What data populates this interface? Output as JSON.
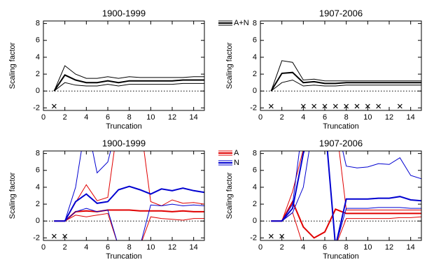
{
  "chart_data": [
    {
      "type": "line",
      "title": "1900-1999",
      "xlabel": "Truncation",
      "ylabel": "Scaling factor",
      "x": [
        1,
        2,
        3,
        4,
        5,
        6,
        7,
        8,
        9,
        10,
        11,
        12,
        13,
        14,
        15
      ],
      "xlim": [
        0,
        15
      ],
      "xticks": [
        0,
        2,
        4,
        6,
        8,
        10,
        12,
        14
      ],
      "ylim": [
        -2.3,
        8.3
      ],
      "yticks": [
        -2,
        0,
        2,
        4,
        6,
        8
      ],
      "reference_line": 0,
      "crosses": [
        1
      ],
      "series": [
        {
          "name": "A+N",
          "color": "#000000",
          "values": [
            0,
            1.9,
            1.3,
            1.0,
            1.0,
            1.2,
            1.0,
            1.2,
            1.2,
            1.2,
            1.2,
            1.2,
            1.3,
            1.3,
            1.3
          ],
          "upper": [
            0,
            3.0,
            2.0,
            1.5,
            1.5,
            1.7,
            1.5,
            1.7,
            1.6,
            1.6,
            1.6,
            1.6,
            1.6,
            1.7,
            1.7
          ],
          "lower": [
            0,
            1.0,
            0.7,
            0.6,
            0.6,
            0.8,
            0.6,
            0.8,
            0.8,
            0.8,
            0.8,
            0.8,
            0.9,
            0.9,
            0.9
          ]
        }
      ]
    },
    {
      "type": "line",
      "title": "1907-2006",
      "xlabel": "Truncation",
      "ylabel": "Scaling factor",
      "x": [
        1,
        2,
        3,
        4,
        5,
        6,
        7,
        8,
        9,
        10,
        11,
        12,
        13,
        14,
        15
      ],
      "xlim": [
        0,
        15
      ],
      "xticks": [
        0,
        2,
        4,
        6,
        8,
        10,
        12,
        14
      ],
      "ylim": [
        -2.3,
        8.3
      ],
      "yticks": [
        -2,
        0,
        2,
        4,
        6,
        8
      ],
      "reference_line": 0,
      "crosses": [
        1,
        4,
        5,
        6,
        7,
        8,
        9,
        10,
        11,
        13
      ],
      "series": [
        {
          "color": "#000000",
          "values": [
            0,
            2.1,
            2.2,
            1.0,
            1.1,
            0.9,
            0.9,
            1.0,
            1.0,
            1.0,
            1.0,
            1.0,
            1.0,
            1.0,
            1.0
          ],
          "upper": [
            0,
            3.6,
            3.4,
            1.3,
            1.4,
            1.2,
            1.2,
            1.2,
            1.2,
            1.2,
            1.2,
            1.2,
            1.2,
            1.2,
            1.2
          ],
          "lower": [
            0,
            1.0,
            1.3,
            0.6,
            0.7,
            0.6,
            0.6,
            0.7,
            0.7,
            0.7,
            0.7,
            0.7,
            0.7,
            0.7,
            0.7
          ]
        }
      ]
    },
    {
      "type": "line",
      "title": "1900-1999",
      "xlabel": "Truncation",
      "ylabel": "Scaling factor",
      "x": [
        1,
        2,
        3,
        4,
        5,
        6,
        7,
        8,
        9,
        10,
        11,
        12,
        13,
        14,
        15
      ],
      "xlim": [
        0,
        15
      ],
      "xticks": [
        0,
        2,
        4,
        6,
        8,
        10,
        12,
        14
      ],
      "ylim": [
        -2.3,
        8.3
      ],
      "yticks": [
        -2,
        0,
        2,
        4,
        6,
        8
      ],
      "reference_line": 0,
      "crosses": [
        1,
        2
      ],
      "series": [
        {
          "name": "A",
          "color": "#e00000",
          "values": [
            0,
            0,
            1.1,
            1.2,
            1.1,
            1.3,
            1.3,
            1.3,
            1.2,
            1.2,
            1.2,
            1.1,
            1.2,
            1.1,
            1.1
          ],
          "upper": [
            0,
            0,
            2.2,
            4.3,
            2.4,
            2.8,
            12,
            null,
            12,
            2.3,
            1.8,
            2.5,
            2.1,
            2.2,
            2.0
          ],
          "lower": [
            0,
            0,
            0.7,
            0.5,
            0.7,
            0.9,
            -3,
            null,
            -3,
            0.5,
            0.3,
            0.2,
            0.1,
            0.3,
            0.3
          ]
        },
        {
          "name": "N",
          "color": "#0000d0",
          "values": [
            0,
            0,
            2.3,
            3.2,
            2.1,
            2.3,
            3.7,
            4.1,
            3.7,
            3.2,
            3.8,
            3.6,
            3.9,
            3.6,
            3.4
          ],
          "upper": [
            0,
            0,
            4,
            12,
            5.7,
            7,
            12,
            null,
            12,
            12,
            12,
            12,
            12,
            12,
            12
          ],
          "lower": [
            0,
            0,
            1.1,
            1.5,
            1.1,
            1.3,
            -3,
            null,
            -3,
            1.9,
            1.8,
            2.0,
            1.8,
            1.9,
            1.8
          ]
        }
      ]
    },
    {
      "type": "line",
      "title": "1907-2006",
      "xlabel": "Truncation",
      "ylabel": "Scaling factor",
      "x": [
        1,
        2,
        3,
        4,
        5,
        6,
        7,
        8,
        9,
        10,
        11,
        12,
        13,
        14,
        15
      ],
      "xlim": [
        0,
        15
      ],
      "xticks": [
        0,
        2,
        4,
        6,
        8,
        10,
        12,
        14
      ],
      "ylim": [
        -2.3,
        8.3
      ],
      "yticks": [
        -2,
        0,
        2,
        4,
        6,
        8
      ],
      "reference_line": 0,
      "crosses": [
        1,
        2
      ],
      "series": [
        {
          "color": "#e00000",
          "values": [
            0,
            0,
            2.3,
            -0.7,
            -2.0,
            -1.3,
            1.4,
            0.9,
            0.9,
            0.9,
            0.9,
            0.9,
            0.9,
            0.9,
            0.9
          ],
          "upper": [
            0,
            0,
            3.5,
            8.5,
            12,
            12,
            12,
            1.3,
            1.3,
            1.3,
            1.3,
            1.3,
            1.3,
            1.3,
            1.3
          ],
          "lower": [
            0,
            0,
            1.0,
            -3,
            -3,
            -3,
            -3,
            0.3,
            0.3,
            0.3,
            0.3,
            0.3,
            0.4,
            0.4,
            0.5
          ]
        },
        {
          "color": "#0000d0",
          "values": [
            0,
            0,
            1.5,
            8,
            12,
            12,
            -3,
            2.6,
            2.6,
            2.6,
            2.7,
            2.7,
            2.9,
            2.5,
            2.4
          ],
          "upper": [
            0,
            0,
            2,
            12,
            12,
            12,
            12,
            6.5,
            6.3,
            6.4,
            6.8,
            6.7,
            7.5,
            5.4,
            5.0
          ],
          "lower": [
            0,
            0,
            1,
            4,
            12,
            12,
            -3,
            1.5,
            1.5,
            1.5,
            1.6,
            1.6,
            1.6,
            1.5,
            1.5
          ]
        }
      ]
    }
  ]
}
